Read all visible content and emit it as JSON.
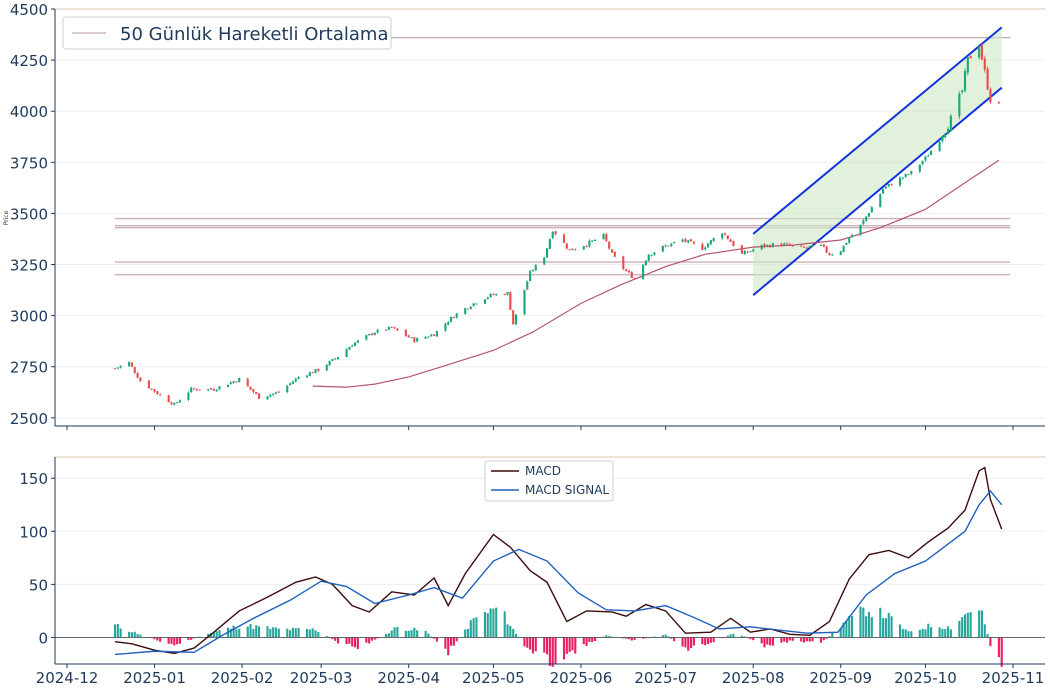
{
  "chart_data": [
    {
      "type": "candlestick",
      "title": "",
      "ylabel": "Price",
      "ylim": [
        2460,
        4500
      ],
      "yticks": [
        2500,
        2750,
        3000,
        3250,
        3500,
        3750,
        4000,
        4250,
        4500
      ],
      "legend": {
        "position": "top-left",
        "entries": [
          "50 Günlük Hareketli Ortalama"
        ]
      },
      "colors": {
        "up": "#1aa878",
        "down": "#e84c4c",
        "ma": "#b4566e",
        "channel": "#1133dd",
        "channel_fill": "#cfe8c4",
        "hlines": "#cbb0b8"
      },
      "horizontal_levels": [
        3200,
        3262,
        3430,
        3440,
        3475,
        4360
      ],
      "trend_channel": {
        "upper": {
          "from": [
            "2025-08-01",
            3400
          ],
          "to": [
            "2025-10-28",
            4410
          ]
        },
        "lower": {
          "from": [
            "2025-08-01",
            3100
          ],
          "to": [
            "2025-10-28",
            4115
          ]
        }
      },
      "candles_anchor_close": [
        [
          "2024-12-18",
          2742
        ],
        [
          "2024-12-23",
          2770
        ],
        [
          "2024-12-27",
          2680
        ],
        [
          "2025-01-03",
          2610
        ],
        [
          "2025-01-08",
          2565
        ],
        [
          "2025-01-14",
          2640
        ],
        [
          "2025-01-22",
          2640
        ],
        [
          "2025-01-31",
          2690
        ],
        [
          "2025-02-07",
          2600
        ],
        [
          "2025-02-14",
          2625
        ],
        [
          "2025-02-21",
          2700
        ],
        [
          "2025-02-28",
          2735
        ],
        [
          "2025-03-07",
          2800
        ],
        [
          "2025-03-12",
          2860
        ],
        [
          "2025-03-20",
          2920
        ],
        [
          "2025-03-26",
          2940
        ],
        [
          "2025-04-03",
          2880
        ],
        [
          "2025-04-10",
          2910
        ],
        [
          "2025-04-17",
          3000
        ],
        [
          "2025-04-24",
          3060
        ],
        [
          "2025-04-30",
          3100
        ],
        [
          "2025-05-06",
          3110
        ],
        [
          "2025-05-08",
          2960
        ],
        [
          "2025-05-14",
          3210
        ],
        [
          "2025-05-19",
          3290
        ],
        [
          "2025-05-22",
          3420
        ],
        [
          "2025-05-28",
          3320
        ],
        [
          "2025-06-03",
          3350
        ],
        [
          "2025-06-09",
          3390
        ],
        [
          "2025-06-12",
          3300
        ],
        [
          "2025-06-16",
          3230
        ],
        [
          "2025-06-20",
          3180
        ],
        [
          "2025-06-25",
          3300
        ],
        [
          "2025-07-01",
          3340
        ],
        [
          "2025-07-07",
          3370
        ],
        [
          "2025-07-14",
          3330
        ],
        [
          "2025-07-21",
          3410
        ],
        [
          "2025-07-28",
          3300
        ],
        [
          "2025-08-04",
          3340
        ],
        [
          "2025-08-11",
          3350
        ],
        [
          "2025-08-18",
          3330
        ],
        [
          "2025-08-25",
          3340
        ],
        [
          "2025-08-28",
          3300
        ],
        [
          "2025-09-01",
          3320
        ],
        [
          "2025-09-04",
          3380
        ],
        [
          "2025-09-08",
          3440
        ],
        [
          "2025-09-12",
          3530
        ],
        [
          "2025-09-16",
          3620
        ],
        [
          "2025-09-22",
          3670
        ],
        [
          "2025-09-26",
          3700
        ],
        [
          "2025-10-01",
          3770
        ],
        [
          "2025-10-06",
          3860
        ],
        [
          "2025-10-10",
          3960
        ],
        [
          "2025-10-14",
          4100
        ],
        [
          "2025-10-16",
          4250
        ],
        [
          "2025-10-20",
          4330
        ],
        [
          "2025-10-22",
          4190
        ],
        [
          "2025-10-24",
          4060
        ],
        [
          "2025-10-27",
          4020
        ]
      ],
      "ma50_points": [
        [
          "2025-02-26",
          2655
        ],
        [
          "2025-03-10",
          2650
        ],
        [
          "2025-03-20",
          2665
        ],
        [
          "2025-04-01",
          2700
        ],
        [
          "2025-04-15",
          2760
        ],
        [
          "2025-05-01",
          2830
        ],
        [
          "2025-05-15",
          2920
        ],
        [
          "2025-06-01",
          3060
        ],
        [
          "2025-06-15",
          3150
        ],
        [
          "2025-07-01",
          3240
        ],
        [
          "2025-07-15",
          3300
        ],
        [
          "2025-08-01",
          3335
        ],
        [
          "2025-08-15",
          3345
        ],
        [
          "2025-09-01",
          3370
        ],
        [
          "2025-09-15",
          3430
        ],
        [
          "2025-10-01",
          3520
        ],
        [
          "2025-10-15",
          3650
        ],
        [
          "2025-10-27",
          3760
        ]
      ]
    },
    {
      "type": "line+bar",
      "title": "",
      "ylim": [
        -25,
        170
      ],
      "yticks": [
        0,
        50,
        100,
        150
      ],
      "xtick_labels": [
        "2024-12",
        "2025-01",
        "2025-02",
        "2025-03",
        "2025-04",
        "2025-05",
        "2025-06",
        "2025-07",
        "2025-08",
        "2025-09",
        "2025-10",
        "2025-11"
      ],
      "legend": {
        "position": "top-center",
        "entries": [
          "MACD",
          "MACD SIGNAL"
        ]
      },
      "colors": {
        "macd": "#3b0d0d",
        "signal": "#1f5fbf",
        "hist_pos": "#26a69a",
        "hist_neg": "#e91e63"
      },
      "series": [
        {
          "name": "MACD",
          "points": [
            [
              "2024-12-18",
              -4
            ],
            [
              "2024-12-24",
              -6
            ],
            [
              "2025-01-01",
              -12
            ],
            [
              "2025-01-08",
              -15
            ],
            [
              "2025-01-15",
              -10
            ],
            [
              "2025-01-22",
              5
            ],
            [
              "2025-01-31",
              25
            ],
            [
              "2025-02-10",
              38
            ],
            [
              "2025-02-20",
              52
            ],
            [
              "2025-02-27",
              57
            ],
            [
              "2025-03-05",
              50
            ],
            [
              "2025-03-12",
              30
            ],
            [
              "2025-03-18",
              24
            ],
            [
              "2025-03-26",
              43
            ],
            [
              "2025-04-03",
              40
            ],
            [
              "2025-04-10",
              56
            ],
            [
              "2025-04-15",
              30
            ],
            [
              "2025-04-21",
              60
            ],
            [
              "2025-05-01",
              97
            ],
            [
              "2025-05-07",
              85
            ],
            [
              "2025-05-14",
              63
            ],
            [
              "2025-05-20",
              52
            ],
            [
              "2025-05-27",
              15
            ],
            [
              "2025-06-03",
              25
            ],
            [
              "2025-06-12",
              24
            ],
            [
              "2025-06-17",
              20
            ],
            [
              "2025-06-24",
              31
            ],
            [
              "2025-07-01",
              25
            ],
            [
              "2025-07-08",
              4
            ],
            [
              "2025-07-17",
              5
            ],
            [
              "2025-07-24",
              18
            ],
            [
              "2025-07-31",
              5
            ],
            [
              "2025-08-07",
              8
            ],
            [
              "2025-08-14",
              3
            ],
            [
              "2025-08-21",
              2
            ],
            [
              "2025-08-28",
              15
            ],
            [
              "2025-09-04",
              55
            ],
            [
              "2025-09-11",
              78
            ],
            [
              "2025-09-18",
              82
            ],
            [
              "2025-09-25",
              75
            ],
            [
              "2025-10-02",
              90
            ],
            [
              "2025-10-09",
              103
            ],
            [
              "2025-10-15",
              120
            ],
            [
              "2025-10-20",
              157
            ],
            [
              "2025-10-22",
              160
            ],
            [
              "2025-10-24",
              130
            ],
            [
              "2025-10-28",
              102
            ]
          ]
        },
        {
          "name": "MACD SIGNAL",
          "points": [
            [
              "2024-12-18",
              -16
            ],
            [
              "2025-01-01",
              -13
            ],
            [
              "2025-01-15",
              -14
            ],
            [
              "2025-01-25",
              2
            ],
            [
              "2025-02-05",
              18
            ],
            [
              "2025-02-18",
              35
            ],
            [
              "2025-03-01",
              53
            ],
            [
              "2025-03-10",
              48
            ],
            [
              "2025-03-20",
              32
            ],
            [
              "2025-04-01",
              40
            ],
            [
              "2025-04-10",
              47
            ],
            [
              "2025-04-20",
              37
            ],
            [
              "2025-05-01",
              72
            ],
            [
              "2025-05-10",
              83
            ],
            [
              "2025-05-20",
              72
            ],
            [
              "2025-05-31",
              42
            ],
            [
              "2025-06-10",
              26
            ],
            [
              "2025-06-20",
              25
            ],
            [
              "2025-07-01",
              30
            ],
            [
              "2025-07-10",
              20
            ],
            [
              "2025-07-20",
              8
            ],
            [
              "2025-07-31",
              10
            ],
            [
              "2025-08-10",
              7
            ],
            [
              "2025-08-20",
              4
            ],
            [
              "2025-08-31",
              5
            ],
            [
              "2025-09-10",
              40
            ],
            [
              "2025-09-20",
              60
            ],
            [
              "2025-10-01",
              72
            ],
            [
              "2025-10-10",
              90
            ],
            [
              "2025-10-15",
              100
            ],
            [
              "2025-10-20",
              125
            ],
            [
              "2025-10-24",
              138
            ],
            [
              "2025-10-28",
              125
            ]
          ]
        }
      ],
      "histogram_anchors": [
        [
          "2024-12-18",
          12
        ],
        [
          "2024-12-28",
          2
        ],
        [
          "2025-01-08",
          -8
        ],
        [
          "2025-01-20",
          4
        ],
        [
          "2025-02-01",
          12
        ],
        [
          "2025-02-15",
          8
        ],
        [
          "2025-02-27",
          8
        ],
        [
          "2025-03-07",
          -5
        ],
        [
          "2025-03-15",
          -10
        ],
        [
          "2025-03-28",
          10
        ],
        [
          "2025-04-07",
          6
        ],
        [
          "2025-04-15",
          -14
        ],
        [
          "2025-04-24",
          18
        ],
        [
          "2025-05-03",
          30
        ],
        [
          "2025-05-12",
          -10
        ],
        [
          "2025-05-22",
          -24
        ],
        [
          "2025-06-01",
          -10
        ],
        [
          "2025-06-10",
          2
        ],
        [
          "2025-06-20",
          -3
        ],
        [
          "2025-07-01",
          3
        ],
        [
          "2025-07-08",
          -12
        ],
        [
          "2025-07-18",
          -4
        ],
        [
          "2025-07-26",
          5
        ],
        [
          "2025-08-05",
          -9
        ],
        [
          "2025-08-15",
          -3
        ],
        [
          "2025-08-25",
          -6
        ],
        [
          "2025-09-02",
          14
        ],
        [
          "2025-09-10",
          28
        ],
        [
          "2025-09-17",
          22
        ],
        [
          "2025-09-25",
          5
        ],
        [
          "2025-10-03",
          12
        ],
        [
          "2025-10-10",
          10
        ],
        [
          "2025-10-17",
          28
        ],
        [
          "2025-10-21",
          24
        ],
        [
          "2025-10-24",
          -8
        ],
        [
          "2025-10-28",
          -25
        ]
      ]
    }
  ]
}
